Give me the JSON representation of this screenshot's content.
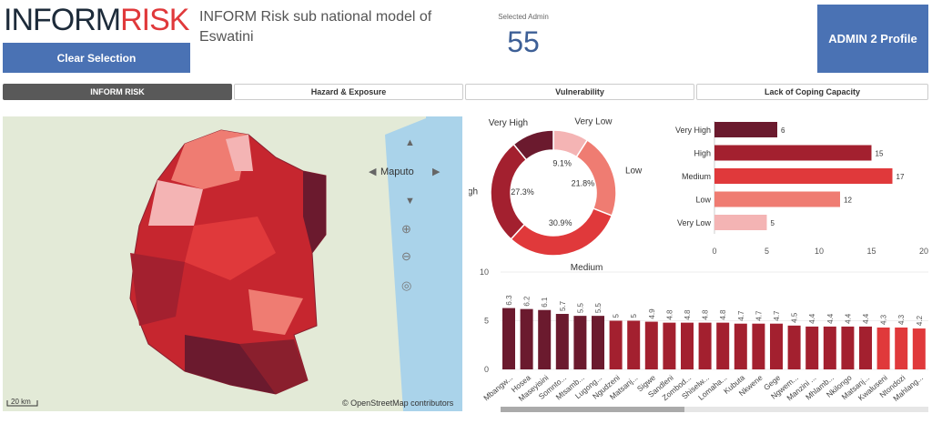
{
  "header": {
    "logo_part1": "INFORM",
    "logo_part2": "RISK",
    "title": "INFORM Risk sub national model of Eswatini",
    "clear_label": "Clear Selection",
    "selected_label": "Selected Admin",
    "selected_value": "55",
    "profile_label": "ADMIN 2 Profile"
  },
  "tabs": [
    {
      "label": "INFORM RISK",
      "active": true
    },
    {
      "label": "Hazard & Exposure"
    },
    {
      "label": "Vulnerability"
    },
    {
      "label": "Lack of Coping Capacity"
    }
  ],
  "map": {
    "city": "Maputo",
    "scale": "20 km",
    "attribution": "© OpenStreetMap contributors"
  },
  "colors": {
    "very_high": "#6b1a2e",
    "high": "#a3202f",
    "medium": "#e0393b",
    "low": "#ef7c72",
    "very_low": "#f4b4b4"
  },
  "chart_data": [
    {
      "type": "pie",
      "title": "",
      "categories": [
        "Very Low",
        "Low",
        "Medium",
        "High",
        "Very High"
      ],
      "values": [
        5,
        12,
        17,
        15,
        6
      ],
      "percent_labels": [
        "9.1%",
        "21.8%",
        "30.9%",
        "27.3%",
        ""
      ]
    },
    {
      "type": "bar",
      "orientation": "horizontal",
      "categories": [
        "Very High",
        "High",
        "Medium",
        "Low",
        "Very Low"
      ],
      "values": [
        6,
        15,
        17,
        12,
        5
      ],
      "xlim": [
        0,
        20
      ],
      "xticks": [
        "0",
        "5",
        "10",
        "15",
        "20"
      ]
    },
    {
      "type": "bar",
      "categories": [
        "Mbangw...",
        "Hosea",
        "Maseyisini",
        "Somnto...",
        "Mtsamb...",
        "Lugong...",
        "Ngudzeni",
        "Matsanj...",
        "Sigwe",
        "Sandleni",
        "Zombod...",
        "Shiselw...",
        "Lomaha...",
        "Kubuta",
        "Nkwene",
        "Gege",
        "Ngwem...",
        "Manzini ...",
        "Mhlamb...",
        "Nkilongo",
        "Matsanj...",
        "Kwaluseni",
        "Ntondozi",
        "Mahlang..."
      ],
      "values": [
        6.3,
        6.2,
        6.1,
        5.7,
        5.5,
        5.5,
        5,
        5,
        4.9,
        4.8,
        4.8,
        4.8,
        4.8,
        4.7,
        4.7,
        4.7,
        4.5,
        4.4,
        4.4,
        4.4,
        4.4,
        4.3,
        4.3,
        4.2
      ],
      "classes": [
        "very_high",
        "very_high",
        "very_high",
        "very_high",
        "very_high",
        "very_high",
        "high",
        "high",
        "high",
        "high",
        "high",
        "high",
        "high",
        "high",
        "high",
        "high",
        "high",
        "high",
        "high",
        "high",
        "high",
        "medium",
        "medium",
        "medium"
      ],
      "ylim": [
        0,
        10
      ],
      "yticks": [
        "0",
        "5",
        "10"
      ]
    }
  ]
}
